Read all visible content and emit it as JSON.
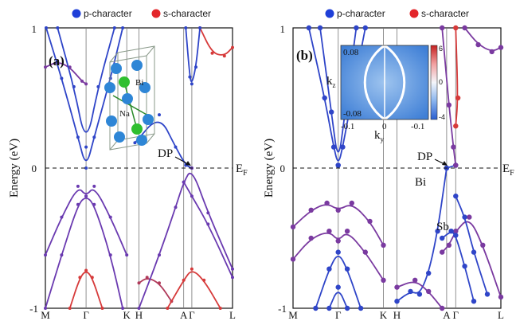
{
  "legend": [
    {
      "label": "p-character",
      "color": "#1f3fd8"
    },
    {
      "label": "s-character",
      "color": "#e3262b"
    }
  ],
  "panel_a": {
    "tag": "(a)",
    "dp_label": "DP",
    "fermi_label": "E",
    "fermi_sub": "F",
    "atom_labels": [
      "Bi",
      "Na"
    ]
  },
  "panel_b": {
    "tag": "(b)",
    "dp_label": "DP",
    "fermi_label": "E",
    "fermi_sub": "F",
    "bi_label": "Bi",
    "sb_label": "Sb",
    "inset": {
      "x_label": "k",
      "x_sub": "y",
      "y_label": "k",
      "y_sub": "z",
      "x_ticks": [
        "-0.1",
        "0",
        "-0.1"
      ],
      "y_ticks": [
        "0.08",
        "0",
        "-0.08"
      ],
      "cbar_ticks": [
        "6",
        "0",
        "-4"
      ]
    }
  },
  "ylabel": "Energy (eV)",
  "yticks": [
    "1",
    "0",
    "-1"
  ],
  "chart_data": [
    {
      "type": "line",
      "panel": "a",
      "ylim": [
        -1,
        1
      ],
      "k_labels": [
        "M",
        "Γ",
        "K",
        "H",
        "A",
        "Γ",
        "L"
      ],
      "k_positions": [
        0,
        1,
        2,
        2.3,
        3.4,
        3.6,
        4.6
      ],
      "series": [
        {
          "color": "#7a3aa0",
          "points": [
            [
              0,
              0.72
            ],
            [
              0.3,
              0.76
            ],
            [
              0.6,
              0.72
            ],
            [
              0.9,
              0.62
            ],
            [
              1.0,
              0.6
            ]
          ]
        },
        {
          "color": "#2f45c8",
          "points": [
            [
              0.02,
              1.0
            ],
            [
              0.4,
              0.64
            ],
            [
              0.8,
              0.22
            ],
            [
              1.0,
              0.0
            ],
            [
              1.2,
              0.22
            ],
            [
              1.6,
              0.64
            ],
            [
              1.9,
              1.0
            ]
          ]
        },
        {
          "color": "#2f45c8",
          "points": [
            [
              0.3,
              1.0
            ],
            [
              0.7,
              0.58
            ],
            [
              1.0,
              0.15
            ],
            [
              1.3,
              0.58
            ],
            [
              1.7,
              1.0
            ]
          ]
        },
        {
          "color": "#6a3ab0",
          "points": [
            [
              0,
              -0.62
            ],
            [
              0.4,
              -0.35
            ],
            [
              0.8,
              -0.13
            ],
            [
              1.0,
              -0.2
            ],
            [
              1.2,
              -0.13
            ],
            [
              1.6,
              -0.35
            ],
            [
              2.0,
              -0.62
            ]
          ]
        },
        {
          "color": "#6a3ab0",
          "points": [
            [
              0,
              -1.0
            ],
            [
              0.4,
              -0.62
            ],
            [
              0.8,
              -0.26
            ],
            [
              1.0,
              -0.2
            ],
            [
              1.2,
              -0.26
            ],
            [
              1.6,
              -0.62
            ],
            [
              1.9,
              -1.0
            ]
          ]
        },
        {
          "color": "#d63a3a",
          "points": [
            [
              0.6,
              -1.0
            ],
            [
              0.85,
              -0.78
            ],
            [
              1.0,
              -0.73
            ],
            [
              1.15,
              -0.78
            ],
            [
              1.4,
              -1.0
            ]
          ]
        },
        {
          "color": "#b03a5a",
          "points": [
            [
              2.3,
              -0.82
            ],
            [
              2.5,
              -0.78
            ],
            [
              2.8,
              -0.82
            ],
            [
              3.1,
              -0.95
            ]
          ]
        },
        {
          "color": "#2f45c8",
          "points": [
            [
              2.2,
              0.18
            ],
            [
              2.8,
              0.38
            ],
            [
              3.2,
              0.15
            ],
            [
              3.45,
              0.02
            ],
            [
              3.6,
              0.0
            ]
          ]
        },
        {
          "color": "#6a3ab0",
          "points": [
            [
              2.3,
              -1.0
            ],
            [
              2.8,
              -0.62
            ],
            [
              3.2,
              -0.28
            ],
            [
              3.4,
              -0.1
            ],
            [
              3.6,
              0.0
            ],
            [
              4.0,
              -0.32
            ],
            [
              4.6,
              -0.72
            ]
          ]
        },
        {
          "color": "#6a3ab0",
          "points": [
            [
              3.4,
              -0.1
            ],
            [
              3.6,
              -0.2
            ],
            [
              4.0,
              -0.4
            ],
            [
              4.6,
              -0.78
            ]
          ]
        },
        {
          "color": "#d63a3a",
          "points": [
            [
              3.0,
              -1.0
            ],
            [
              3.4,
              -0.8
            ],
            [
              3.6,
              -0.72
            ],
            [
              3.9,
              -0.8
            ],
            [
              4.3,
              -1.0
            ]
          ]
        },
        {
          "color": "#d63a3a",
          "points": [
            [
              3.8,
              1.0
            ],
            [
              4.1,
              0.82
            ],
            [
              4.4,
              0.8
            ],
            [
              4.6,
              0.86
            ]
          ]
        },
        {
          "color": "#2f45c8",
          "points": [
            [
              3.45,
              1.0
            ],
            [
              3.55,
              0.65
            ],
            [
              3.6,
              0.6
            ],
            [
              3.7,
              0.72
            ],
            [
              3.8,
              1.0
            ]
          ]
        }
      ]
    },
    {
      "type": "line",
      "panel": "b",
      "ylim": [
        -1,
        1
      ],
      "k_labels": [
        "M",
        "Γ",
        "K",
        "H",
        "A",
        "Γ",
        "L"
      ],
      "k_positions": [
        0,
        1,
        2,
        2.3,
        3.4,
        3.6,
        4.6
      ],
      "series": [
        {
          "color": "#2f45c8",
          "points": [
            [
              0.35,
              1.0
            ],
            [
              0.7,
              0.5
            ],
            [
              0.9,
              0.15
            ],
            [
              1.0,
              0.02
            ],
            [
              1.1,
              0.15
            ],
            [
              1.3,
              0.5
            ],
            [
              1.6,
              1.0
            ]
          ]
        },
        {
          "color": "#2f45c8",
          "points": [
            [
              0.6,
              1.0
            ],
            [
              0.85,
              0.4
            ],
            [
              1.0,
              0.02
            ],
            [
              1.15,
              0.4
            ],
            [
              1.4,
              1.0
            ]
          ]
        },
        {
          "color": "#7a3aa0",
          "points": [
            [
              0,
              -0.42
            ],
            [
              0.4,
              -0.3
            ],
            [
              0.75,
              -0.25
            ],
            [
              1.0,
              -0.3
            ],
            [
              1.3,
              -0.25
            ],
            [
              1.7,
              -0.38
            ],
            [
              2.0,
              -0.55
            ]
          ]
        },
        {
          "color": "#7a3aa0",
          "points": [
            [
              0,
              -0.65
            ],
            [
              0.4,
              -0.5
            ],
            [
              0.8,
              -0.45
            ],
            [
              1.0,
              -0.52
            ],
            [
              1.2,
              -0.45
            ],
            [
              1.6,
              -0.6
            ],
            [
              2.0,
              -0.8
            ]
          ]
        },
        {
          "color": "#2f45c8",
          "points": [
            [
              0.5,
              -1.0
            ],
            [
              0.8,
              -0.72
            ],
            [
              1.0,
              -0.6
            ],
            [
              1.2,
              -0.72
            ],
            [
              1.5,
              -1.0
            ]
          ]
        },
        {
          "color": "#2f45c8",
          "points": [
            [
              0.8,
              -1.0
            ],
            [
              1.0,
              -0.85
            ],
            [
              1.2,
              -1.0
            ]
          ]
        },
        {
          "color": "#2f45c8",
          "points": [
            [
              2.3,
              -0.95
            ],
            [
              2.6,
              -0.88
            ],
            [
              2.8,
              -0.9
            ],
            [
              3.0,
              -0.75
            ],
            [
              3.2,
              -0.45
            ],
            [
              3.4,
              0.0
            ]
          ]
        },
        {
          "color": "#7a3aa0",
          "points": [
            [
              2.3,
              -0.85
            ],
            [
              2.7,
              -0.8
            ],
            [
              3.0,
              -0.88
            ],
            [
              3.3,
              -1.0
            ]
          ]
        },
        {
          "color": "#2f45c8",
          "points": [
            [
              3.4,
              0.0
            ],
            [
              3.6,
              0.02
            ]
          ]
        },
        {
          "color": "#7a3aa0",
          "points": [
            [
              3.3,
              -0.6
            ],
            [
              3.45,
              -0.55
            ],
            [
              3.6,
              -0.45
            ],
            [
              3.9,
              -0.35
            ],
            [
              4.2,
              -0.55
            ],
            [
              4.6,
              -0.92
            ]
          ]
        },
        {
          "color": "#2f45c8",
          "points": [
            [
              3.3,
              -0.5
            ],
            [
              3.5,
              -0.45
            ],
            [
              3.6,
              -0.48
            ],
            [
              3.8,
              -0.7
            ],
            [
              4.0,
              -0.95
            ]
          ]
        },
        {
          "color": "#2f45c8",
          "points": [
            [
              3.6,
              -0.2
            ],
            [
              3.8,
              -0.35
            ],
            [
              4.0,
              -0.6
            ],
            [
              4.3,
              -0.9
            ]
          ]
        },
        {
          "color": "#d63a3a",
          "points": [
            [
              3.6,
              1.0
            ],
            [
              3.65,
              0.5
            ],
            [
              3.6,
              0.3
            ]
          ]
        },
        {
          "color": "#7a3aa0",
          "points": [
            [
              3.8,
              1.0
            ],
            [
              4.1,
              0.88
            ],
            [
              4.4,
              0.83
            ],
            [
              4.6,
              0.86
            ]
          ]
        },
        {
          "color": "#7a3aa0",
          "points": [
            [
              3.3,
              1.0
            ],
            [
              3.45,
              0.45
            ],
            [
              3.55,
              0.15
            ],
            [
              3.6,
              0.02
            ]
          ]
        }
      ]
    }
  ]
}
